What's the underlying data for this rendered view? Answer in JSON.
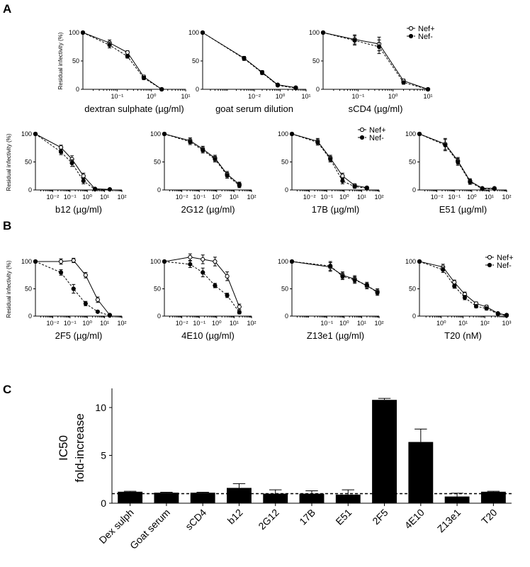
{
  "panel_labels": [
    "A",
    "B",
    "C"
  ],
  "series_names": [
    "Nef+",
    "Nef-"
  ],
  "common_ylabel": "Residual infectivity (%)",
  "chart_data": [
    {
      "id": "dextran",
      "type": "line",
      "panel": "A",
      "xlabel": "dextran sulphate (µg/ml)",
      "xlog": true,
      "xlim": [
        0.01,
        10
      ],
      "xticks": [
        "10⁻¹",
        "10⁰",
        "10¹"
      ],
      "ylim": [
        0,
        100
      ],
      "yticks": [
        "0",
        "50",
        "100"
      ],
      "series": [
        {
          "name": "Nef+",
          "x": [
            0.01,
            0.06,
            0.2,
            0.6,
            2
          ],
          "y": [
            100,
            82,
            65,
            22,
            0
          ],
          "err": [
            0,
            5,
            3,
            3,
            1
          ]
        },
        {
          "name": "Nef-",
          "x": [
            0.01,
            0.06,
            0.2,
            0.6,
            2
          ],
          "y": [
            100,
            78,
            58,
            20,
            0
          ],
          "err": [
            0,
            5,
            3,
            3,
            1
          ]
        }
      ]
    },
    {
      "id": "goat",
      "type": "line",
      "panel": "A",
      "xlabel": "goat serum dilution",
      "xlog": true,
      "xlim": [
        0.001,
        10
      ],
      "xticks": [
        "10⁻²",
        "10⁰",
        "10¹"
      ],
      "ylim": [
        0,
        100
      ],
      "yticks": [
        "0",
        "50",
        "100"
      ],
      "series": [
        {
          "name": "Nef+",
          "x": [
            0.001,
            0.04,
            0.2,
            0.8,
            4
          ],
          "y": [
            100,
            55,
            30,
            8,
            3
          ],
          "err": [
            0,
            3,
            3,
            2,
            1
          ]
        },
        {
          "name": "Nef-",
          "x": [
            0.001,
            0.04,
            0.2,
            0.8,
            4
          ],
          "y": [
            100,
            54,
            29,
            7,
            2
          ],
          "err": [
            0,
            3,
            3,
            2,
            1
          ]
        }
      ]
    },
    {
      "id": "scd4",
      "type": "line",
      "panel": "A",
      "xlabel": "sCD4 (µg/ml)",
      "xlog": true,
      "xlim": [
        0.01,
        10
      ],
      "xticks": [
        "10⁻¹",
        "10⁰",
        "10¹"
      ],
      "ylim": [
        0,
        100
      ],
      "yticks": [
        "0",
        "50",
        "100"
      ],
      "legend": "top-right",
      "series": [
        {
          "name": "Nef+",
          "x": [
            0.01,
            0.08,
            0.4,
            2,
            10
          ],
          "y": [
            100,
            88,
            80,
            15,
            0
          ],
          "err": [
            0,
            8,
            12,
            3,
            1
          ]
        },
        {
          "name": "Nef-",
          "x": [
            0.01,
            0.08,
            0.4,
            2,
            10
          ],
          "y": [
            100,
            86,
            75,
            12,
            0
          ],
          "err": [
            0,
            8,
            12,
            3,
            1
          ]
        }
      ]
    },
    {
      "id": "b12",
      "type": "line",
      "panel": "A",
      "xlabel": "b12 (µg/ml)",
      "xlog": true,
      "xlim": [
        0.001,
        100
      ],
      "xticks": [
        "10⁻²",
        "10⁻¹",
        "10⁰",
        "10¹",
        "10²"
      ],
      "ylim": [
        0,
        100
      ],
      "yticks": [
        "0",
        "50",
        "100"
      ],
      "series": [
        {
          "name": "Nef+",
          "x": [
            0.001,
            0.03,
            0.13,
            0.6,
            2.8,
            20
          ],
          "y": [
            100,
            76,
            55,
            25,
            2,
            1
          ],
          "err": [
            0,
            4,
            6,
            5,
            1,
            1
          ]
        },
        {
          "name": "Nef-",
          "x": [
            0.001,
            0.03,
            0.13,
            0.6,
            2.8,
            20
          ],
          "y": [
            100,
            68,
            48,
            16,
            1,
            1
          ],
          "err": [
            0,
            5,
            6,
            5,
            1,
            1
          ]
        }
      ]
    },
    {
      "id": "2g12",
      "type": "line",
      "panel": "A",
      "xlabel": "2G12 (µg/ml)",
      "xlog": true,
      "xlim": [
        0.001,
        100
      ],
      "xticks": [
        "10⁻²",
        "10⁻¹",
        "10⁰",
        "10¹",
        "10²"
      ],
      "ylim": [
        0,
        100
      ],
      "yticks": [
        "0",
        "50",
        "100"
      ],
      "series": [
        {
          "name": "Nef+",
          "x": [
            0.001,
            0.03,
            0.16,
            0.8,
            4,
            20
          ],
          "y": [
            100,
            88,
            73,
            57,
            28,
            10
          ],
          "err": [
            0,
            5,
            5,
            5,
            5,
            4
          ]
        },
        {
          "name": "Nef-",
          "x": [
            0.001,
            0.03,
            0.16,
            0.8,
            4,
            20
          ],
          "y": [
            100,
            86,
            71,
            55,
            26,
            8
          ],
          "err": [
            0,
            5,
            5,
            5,
            5,
            4
          ]
        }
      ]
    },
    {
      "id": "17b",
      "type": "line",
      "panel": "A",
      "xlabel": "17B (µg/ml)",
      "xlog": true,
      "xlim": [
        0.001,
        100
      ],
      "xticks": [
        "10⁻²",
        "10⁻¹",
        "10⁰",
        "10¹",
        "10²"
      ],
      "ylim": [
        0,
        100
      ],
      "yticks": [
        "0",
        "50",
        "100"
      ],
      "legend": "top-right",
      "series": [
        {
          "name": "Nef+",
          "x": [
            0.001,
            0.03,
            0.16,
            0.8,
            4,
            20
          ],
          "y": [
            100,
            87,
            57,
            25,
            8,
            4
          ],
          "err": [
            0,
            5,
            5,
            5,
            3,
            2
          ]
        },
        {
          "name": "Nef-",
          "x": [
            0.001,
            0.03,
            0.16,
            0.8,
            4,
            20
          ],
          "y": [
            100,
            85,
            55,
            16,
            6,
            3
          ],
          "err": [
            0,
            5,
            5,
            5,
            3,
            2
          ]
        }
      ]
    },
    {
      "id": "e51",
      "type": "line",
      "panel": "A",
      "xlabel": "E51 (µg/ml)",
      "xlog": true,
      "xlim": [
        0.001,
        100
      ],
      "xticks": [
        "10⁻²",
        "10⁻¹",
        "10⁰",
        "10¹",
        "10²"
      ],
      "ylim": [
        0,
        100
      ],
      "yticks": [
        "0",
        "50",
        "100"
      ],
      "series": [
        {
          "name": "Nef+",
          "x": [
            0.001,
            0.03,
            0.16,
            0.8,
            4,
            20
          ],
          "y": [
            100,
            82,
            52,
            16,
            3,
            3
          ],
          "err": [
            0,
            10,
            6,
            4,
            2,
            2
          ]
        },
        {
          "name": "Nef-",
          "x": [
            0.001,
            0.03,
            0.16,
            0.8,
            4,
            20
          ],
          "y": [
            100,
            80,
            50,
            14,
            2,
            2
          ],
          "err": [
            0,
            10,
            6,
            4,
            2,
            2
          ]
        }
      ]
    },
    {
      "id": "2f5",
      "type": "line",
      "panel": "B",
      "xlabel": "2F5 (µg/ml)",
      "xlog": true,
      "xlim": [
        0.001,
        100
      ],
      "xticks": [
        "10⁻²",
        "10⁻¹",
        "10⁰",
        "10¹",
        "10²"
      ],
      "ylim": [
        0,
        100
      ],
      "yticks": [
        "0",
        "50",
        "100"
      ],
      "series": [
        {
          "name": "Nef+",
          "x": [
            0.001,
            0.03,
            0.16,
            0.8,
            4,
            20
          ],
          "y": [
            100,
            100,
            102,
            75,
            30,
            2
          ],
          "err": [
            0,
            5,
            4,
            5,
            5,
            1
          ]
        },
        {
          "name": "Nef-",
          "x": [
            0.001,
            0.03,
            0.16,
            0.8,
            4,
            20
          ],
          "y": [
            100,
            80,
            50,
            23,
            8,
            1
          ],
          "err": [
            0,
            5,
            8,
            4,
            2,
            1
          ]
        }
      ]
    },
    {
      "id": "4e10",
      "type": "line",
      "panel": "B",
      "xlabel": "4E10 (µg/ml)",
      "xlog": true,
      "xlim": [
        0.001,
        100
      ],
      "xticks": [
        "10⁻²",
        "10⁻¹",
        "10⁰",
        "10¹",
        "10²"
      ],
      "ylim": [
        0,
        100
      ],
      "yticks": [
        "0",
        "50",
        "100"
      ],
      "series": [
        {
          "name": "Nef+",
          "x": [
            0.001,
            0.03,
            0.16,
            0.8,
            4,
            20
          ],
          "y": [
            100,
            108,
            104,
            100,
            73,
            17
          ],
          "err": [
            0,
            6,
            8,
            8,
            8,
            5
          ]
        },
        {
          "name": "Nef-",
          "x": [
            0.001,
            0.03,
            0.16,
            0.8,
            4,
            20
          ],
          "y": [
            100,
            95,
            80,
            56,
            38,
            7
          ],
          "err": [
            0,
            6,
            8,
            4,
            4,
            3
          ]
        }
      ]
    },
    {
      "id": "z13e1",
      "type": "line",
      "panel": "B",
      "xlabel": "Z13e1 (µg/ml)",
      "xlog": true,
      "xlim": [
        0.001,
        100
      ],
      "xticks": [
        "10⁻¹",
        "10⁰",
        "10¹",
        "10²"
      ],
      "ylim": [
        0,
        100
      ],
      "yticks": [
        "0",
        "50",
        "100"
      ],
      "series": [
        {
          "name": "Nef+",
          "x": [
            0.001,
            0.16,
            0.8,
            4,
            20,
            80
          ],
          "y": [
            100,
            90,
            75,
            68,
            55,
            45
          ],
          "err": [
            0,
            8,
            6,
            6,
            5,
            5
          ]
        },
        {
          "name": "Nef-",
          "x": [
            0.001,
            0.16,
            0.8,
            4,
            20,
            80
          ],
          "y": [
            100,
            92,
            73,
            66,
            57,
            43
          ],
          "err": [
            0,
            8,
            6,
            6,
            5,
            5
          ]
        }
      ]
    },
    {
      "id": "t20",
      "type": "line",
      "panel": "B",
      "xlabel": "T20 (nM)",
      "xlog": true,
      "xlim": [
        0.1,
        1000
      ],
      "xticks": [
        "10⁰",
        "10¹",
        "10²",
        "10³"
      ],
      "ylim": [
        0,
        100
      ],
      "yticks": [
        "0",
        "50",
        "100"
      ],
      "legend": "top-right",
      "series": [
        {
          "name": "Nef+",
          "x": [
            0.1,
            1.2,
            4,
            12,
            40,
            120,
            400,
            1000
          ],
          "y": [
            100,
            90,
            62,
            40,
            23,
            17,
            5,
            2
          ],
          "err": [
            0,
            5,
            4,
            4,
            3,
            3,
            2,
            1
          ]
        },
        {
          "name": "Nef-",
          "x": [
            0.1,
            1.2,
            4,
            12,
            40,
            120,
            400,
            1000
          ],
          "y": [
            100,
            85,
            55,
            34,
            18,
            14,
            4,
            1
          ],
          "err": [
            0,
            5,
            4,
            4,
            3,
            3,
            2,
            1
          ]
        }
      ]
    },
    {
      "id": "ic50",
      "type": "bar",
      "panel": "C",
      "ylabel_line1": "IC50",
      "ylabel_line2": "fold-increase",
      "categories": [
        "Dex sulph",
        "Goat serum",
        "sCD4",
        "b12",
        "2G12",
        "17B",
        "E51",
        "2F5",
        "4E10",
        "Z13e1",
        "T20"
      ],
      "values": [
        1.2,
        1.1,
        1.1,
        1.6,
        1.0,
        1.0,
        0.9,
        10.8,
        6.4,
        0.7,
        1.2
      ],
      "errors": [
        0.05,
        0.05,
        0.05,
        0.45,
        0.4,
        0.3,
        0.5,
        0.15,
        1.35,
        0.35,
        0.05
      ],
      "ylim": [
        0,
        12
      ],
      "yticks": [
        0,
        5,
        10
      ],
      "reference_line": 1
    }
  ]
}
